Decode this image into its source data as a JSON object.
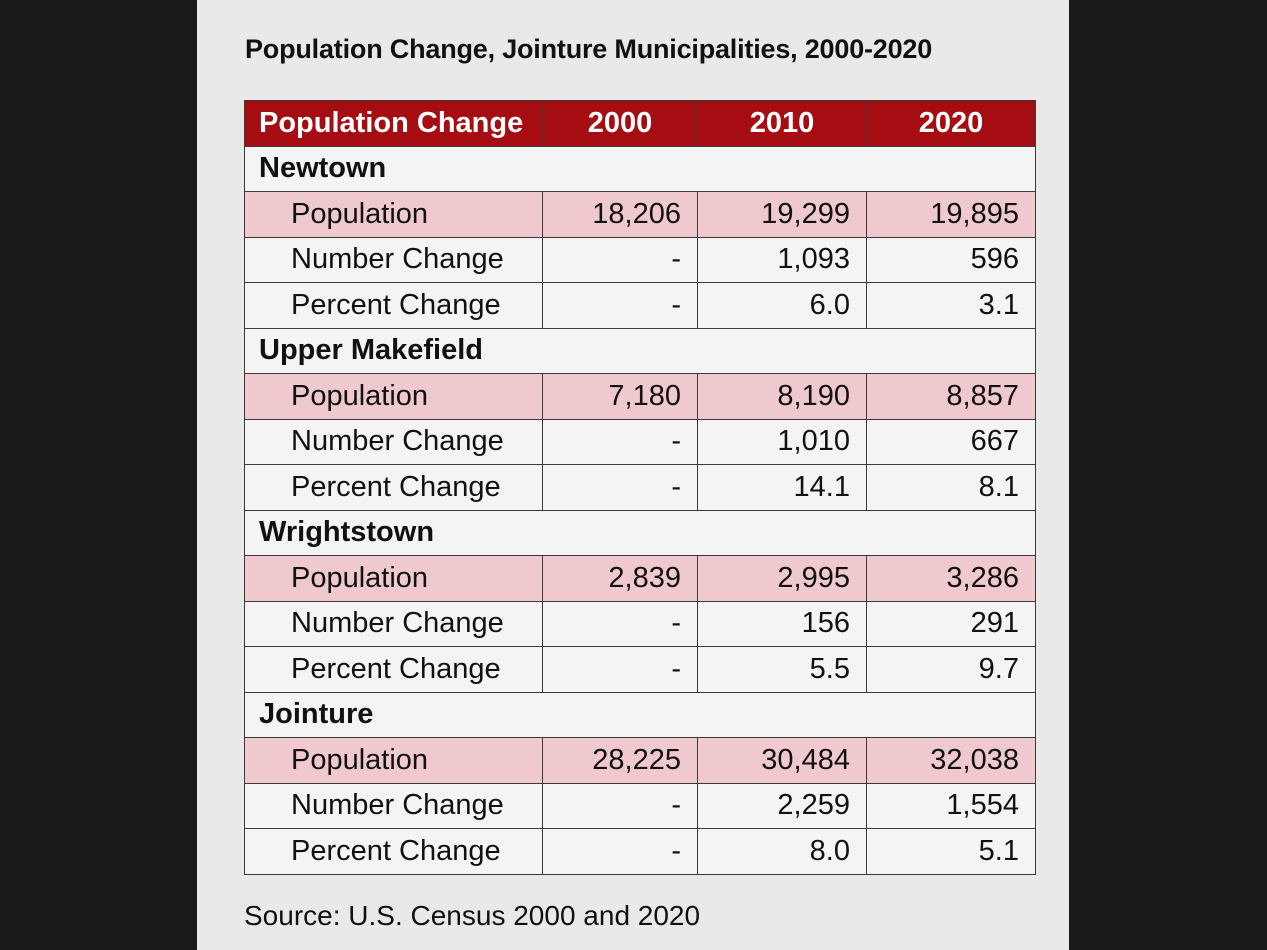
{
  "title": "Population Change, Jointure Municipalities, 2000-2020",
  "headers": [
    "Population Change",
    "2000",
    "2010",
    "2020"
  ],
  "groups": [
    {
      "name": "Newtown",
      "rows": [
        {
          "label": "Population",
          "values": [
            "18,206",
            "19,299",
            "19,895"
          ]
        },
        {
          "label": "Number Change",
          "values": [
            "-",
            "1,093",
            "596"
          ]
        },
        {
          "label": "Percent Change",
          "values": [
            "-",
            "6.0",
            "3.1"
          ]
        }
      ]
    },
    {
      "name": "Upper Makefield",
      "rows": [
        {
          "label": "Population",
          "values": [
            "7,180",
            "8,190",
            "8,857"
          ]
        },
        {
          "label": "Number Change",
          "values": [
            "-",
            "1,010",
            "667"
          ]
        },
        {
          "label": "Percent Change",
          "values": [
            "-",
            "14.1",
            "8.1"
          ]
        }
      ]
    },
    {
      "name": "Wrightstown",
      "rows": [
        {
          "label": "Population",
          "values": [
            "2,839",
            "2,995",
            "3,286"
          ]
        },
        {
          "label": "Number Change",
          "values": [
            "-",
            "156",
            "291"
          ]
        },
        {
          "label": "Percent Change",
          "values": [
            "-",
            "5.5",
            "9.7"
          ]
        }
      ]
    },
    {
      "name": "Jointure",
      "rows": [
        {
          "label": "Population",
          "values": [
            "28,225",
            "30,484",
            "32,038"
          ]
        },
        {
          "label": "Number Change",
          "values": [
            "-",
            "2,259",
            "1,554"
          ]
        },
        {
          "label": "Percent Change",
          "values": [
            "-",
            "8.0",
            "5.1"
          ]
        }
      ]
    }
  ],
  "source": "Source: U.S. Census 2000 and 2020",
  "colors": {
    "header_bg": "#a50d12",
    "population_row_bg": "#efc9ce",
    "panel_bg": "#e9e9e9",
    "page_bg": "#191919"
  }
}
